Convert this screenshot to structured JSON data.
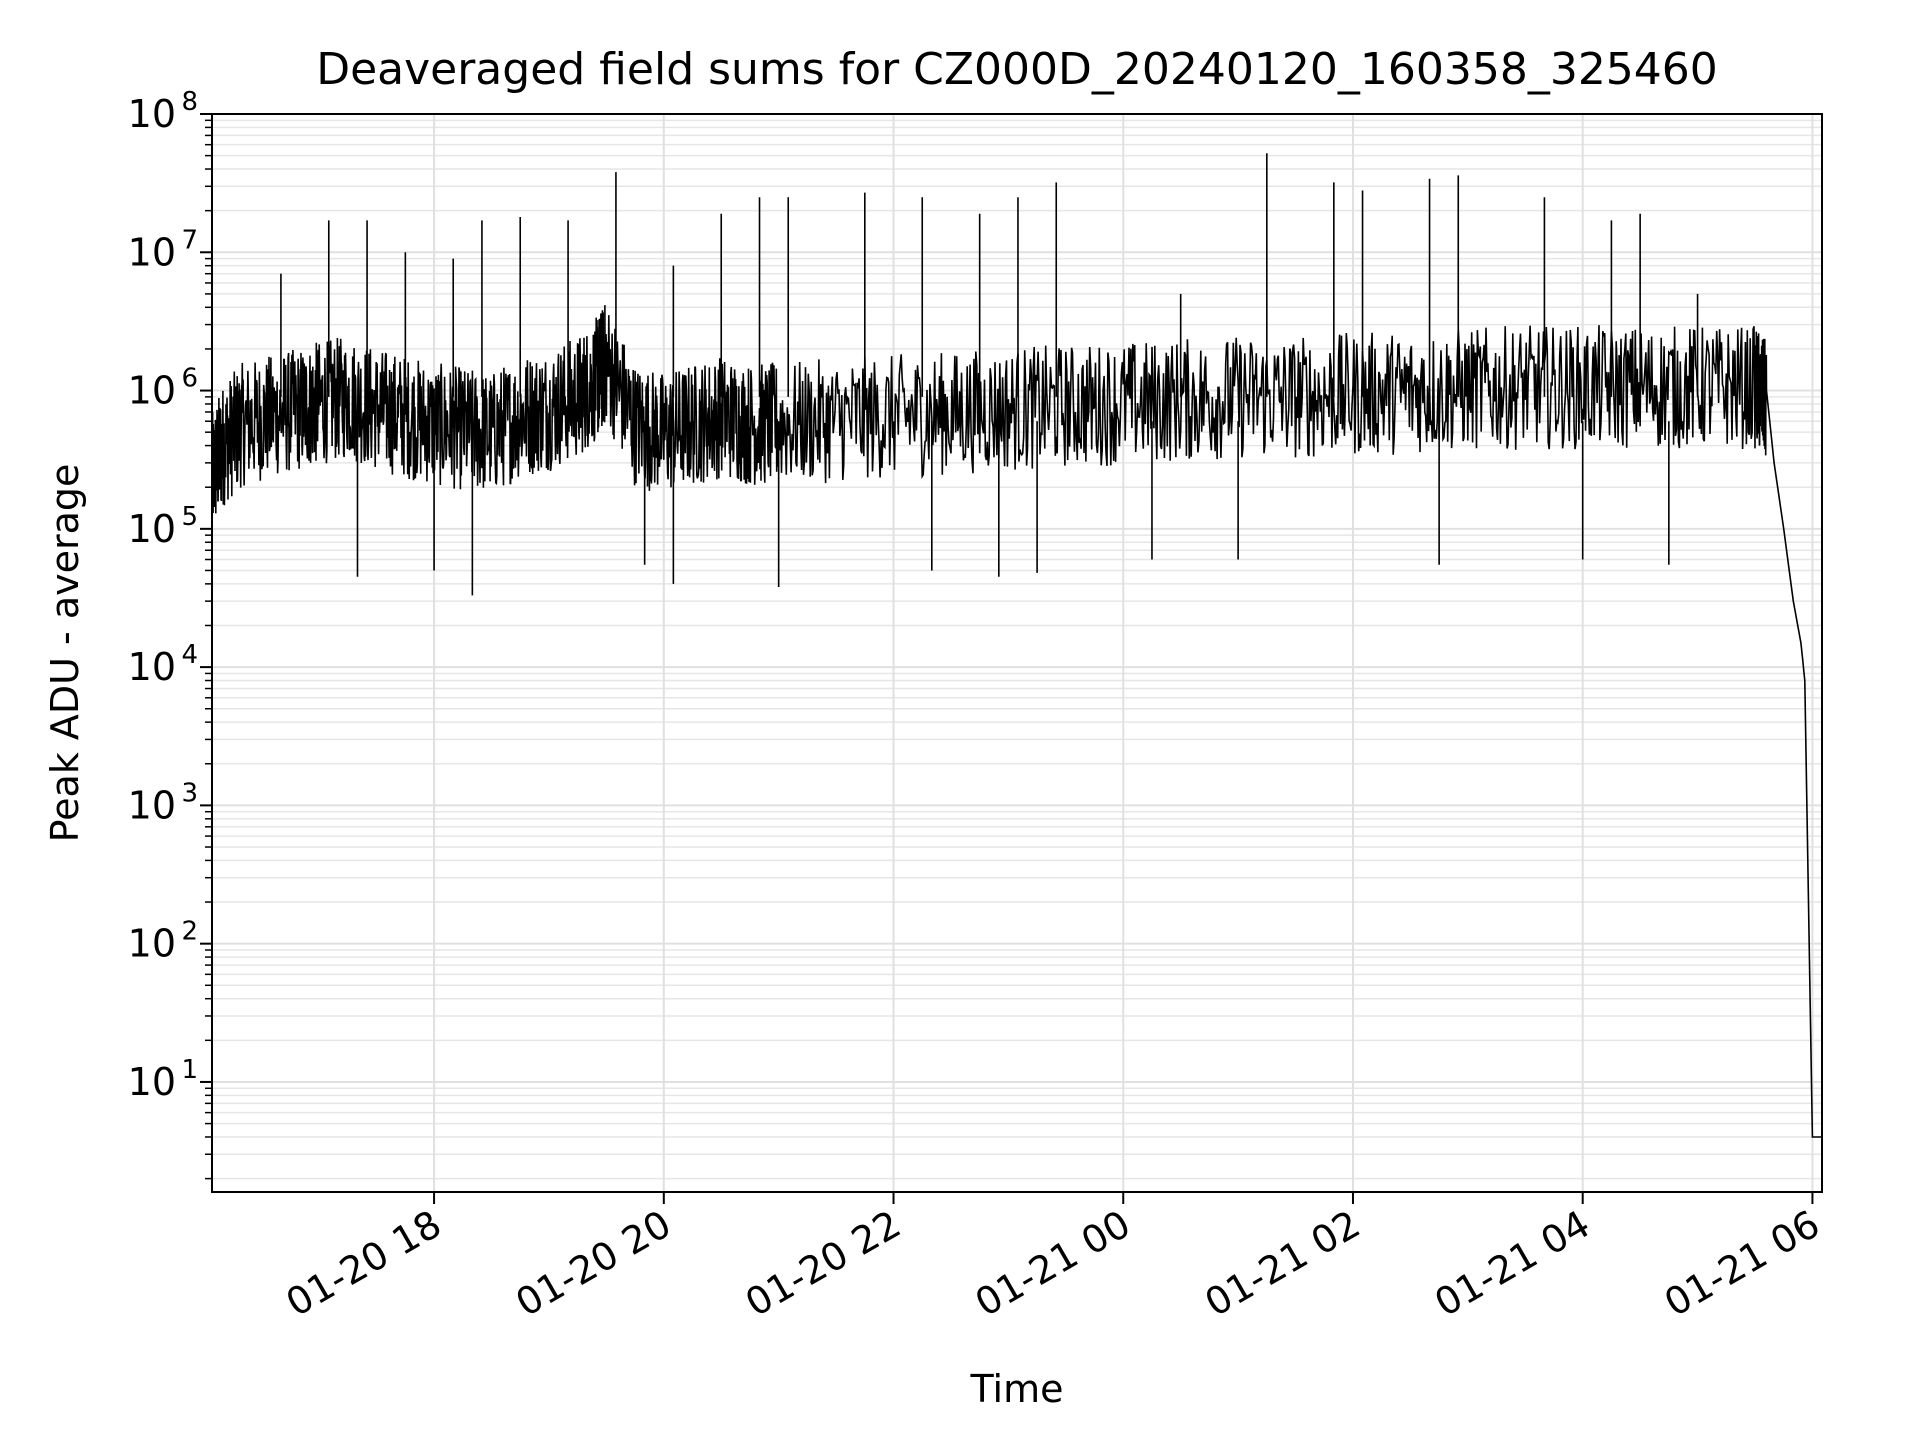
{
  "chart_data": {
    "type": "line",
    "title": "Deaveraged field sums for CZ000D_20240120_160358_325460",
    "xlabel": "Time",
    "ylabel": "Peak ADU - average",
    "yscale": "log",
    "ylim": [
      1.6,
      100000000
    ],
    "xlim": [
      "2024-01-20 16:04",
      "2024-01-21 06:05"
    ],
    "grid": "major and minor",
    "legend": "none",
    "y_ticks": [
      {
        "base": "10",
        "exp": "1",
        "value": 10
      },
      {
        "base": "10",
        "exp": "2",
        "value": 100
      },
      {
        "base": "10",
        "exp": "3",
        "value": 1000
      },
      {
        "base": "10",
        "exp": "4",
        "value": 10000
      },
      {
        "base": "10",
        "exp": "5",
        "value": 100000
      },
      {
        "base": "10",
        "exp": "6",
        "value": 1000000
      },
      {
        "base": "10",
        "exp": "7",
        "value": 10000000
      },
      {
        "base": "10",
        "exp": "8",
        "value": 100000000
      }
    ],
    "x_ticks": [
      {
        "label": "01-20 18",
        "time": "2024-01-20 18:00"
      },
      {
        "label": "01-20 20",
        "time": "2024-01-20 20:00"
      },
      {
        "label": "01-20 22",
        "time": "2024-01-20 22:00"
      },
      {
        "label": "01-21 00",
        "time": "2024-01-21 00:00"
      },
      {
        "label": "01-21 02",
        "time": "2024-01-21 02:00"
      },
      {
        "label": "01-21 04",
        "time": "2024-01-21 04:00"
      },
      {
        "label": "01-21 06",
        "time": "2024-01-21 06:00"
      }
    ],
    "series": [
      {
        "color": "#000000",
        "x": [
          "2024-01-20 16:04",
          "2024-01-20 16:10",
          "2024-01-20 16:20",
          "2024-01-20 16:35",
          "2024-01-20 16:50",
          "2024-01-20 17:00",
          "2024-01-20 17:15",
          "2024-01-20 17:30",
          "2024-01-20 17:45",
          "2024-01-20 18:00",
          "2024-01-20 18:15",
          "2024-01-20 18:30",
          "2024-01-20 18:45",
          "2024-01-20 19:00",
          "2024-01-20 19:15",
          "2024-01-20 19:25",
          "2024-01-20 19:30",
          "2024-01-20 19:45",
          "2024-01-20 20:00",
          "2024-01-20 20:15",
          "2024-01-20 20:30",
          "2024-01-20 20:45",
          "2024-01-20 21:00",
          "2024-01-20 21:30",
          "2024-01-20 22:00",
          "2024-01-20 22:30",
          "2024-01-20 23:00",
          "2024-01-20 23:30",
          "2024-01-21 00:00",
          "2024-01-21 00:30",
          "2024-01-21 01:00",
          "2024-01-21 01:30",
          "2024-01-21 02:00",
          "2024-01-21 02:30",
          "2024-01-21 03:00",
          "2024-01-21 03:30",
          "2024-01-21 04:00",
          "2024-01-21 04:30",
          "2024-01-21 05:00",
          "2024-01-21 05:30",
          "2024-01-21 05:36",
          "2024-01-21 05:40",
          "2024-01-21 05:45",
          "2024-01-21 05:50",
          "2024-01-21 05:54",
          "2024-01-21 05:56",
          "2024-01-21 06:00",
          "2024-01-21 06:05"
        ],
        "y": [
          300000,
          500000,
          700000,
          800000,
          900000,
          1000000,
          1100000,
          900000,
          800000,
          700000,
          650000,
          600000,
          800000,
          900000,
          1100000,
          1500000,
          2000000,
          700000,
          600000,
          700000,
          800000,
          700000,
          700000,
          750000,
          800000,
          850000,
          900000,
          950000,
          1000000,
          1050000,
          1100000,
          1100000,
          1150000,
          1200000,
          1250000,
          1300000,
          1300000,
          1300000,
          1300000,
          1300000,
          1000000,
          300000,
          100000,
          30000,
          15000,
          8000,
          4,
          4
        ]
      }
    ],
    "spikes": [
      {
        "x": "2024-01-20 16:40",
        "y": 7000000
      },
      {
        "x": "2024-01-20 17:05",
        "y": 17000000
      },
      {
        "x": "2024-01-20 17:25",
        "y": 17000000
      },
      {
        "x": "2024-01-20 17:45",
        "y": 10000000
      },
      {
        "x": "2024-01-20 18:10",
        "y": 9000000
      },
      {
        "x": "2024-01-20 18:25",
        "y": 17000000
      },
      {
        "x": "2024-01-20 18:45",
        "y": 18000000
      },
      {
        "x": "2024-01-20 19:10",
        "y": 17000000
      },
      {
        "x": "2024-01-20 19:35",
        "y": 38000000
      },
      {
        "x": "2024-01-20 20:05",
        "y": 8000000
      },
      {
        "x": "2024-01-20 20:30",
        "y": 19000000
      },
      {
        "x": "2024-01-20 20:50",
        "y": 25000000
      },
      {
        "x": "2024-01-20 21:05",
        "y": 25000000
      },
      {
        "x": "2024-01-20 21:45",
        "y": 27000000
      },
      {
        "x": "2024-01-20 22:15",
        "y": 25000000
      },
      {
        "x": "2024-01-20 22:45",
        "y": 19000000
      },
      {
        "x": "2024-01-20 23:05",
        "y": 25000000
      },
      {
        "x": "2024-01-20 23:25",
        "y": 32000000
      },
      {
        "x": "2024-01-21 00:30",
        "y": 5000000
      },
      {
        "x": "2024-01-21 01:15",
        "y": 52000000
      },
      {
        "x": "2024-01-21 01:50",
        "y": 32000000
      },
      {
        "x": "2024-01-21 02:05",
        "y": 28000000
      },
      {
        "x": "2024-01-21 02:40",
        "y": 34000000
      },
      {
        "x": "2024-01-21 02:55",
        "y": 36000000
      },
      {
        "x": "2024-01-21 03:40",
        "y": 25000000
      },
      {
        "x": "2024-01-21 04:15",
        "y": 17000000
      },
      {
        "x": "2024-01-21 04:30",
        "y": 19000000
      },
      {
        "x": "2024-01-21 05:00",
        "y": 5000000
      }
    ],
    "dips": [
      {
        "x": "2024-01-20 17:20",
        "y": 45000
      },
      {
        "x": "2024-01-20 18:00",
        "y": 50000
      },
      {
        "x": "2024-01-20 18:20",
        "y": 33000
      },
      {
        "x": "2024-01-20 19:50",
        "y": 55000
      },
      {
        "x": "2024-01-20 20:05",
        "y": 40000
      },
      {
        "x": "2024-01-20 21:00",
        "y": 38000
      },
      {
        "x": "2024-01-20 22:20",
        "y": 50000
      },
      {
        "x": "2024-01-20 22:55",
        "y": 45000
      },
      {
        "x": "2024-01-20 23:15",
        "y": 48000
      },
      {
        "x": "2024-01-21 00:15",
        "y": 60000
      },
      {
        "x": "2024-01-21 01:00",
        "y": 60000
      },
      {
        "x": "2024-01-21 02:45",
        "y": 55000
      },
      {
        "x": "2024-01-21 04:00",
        "y": 60000
      },
      {
        "x": "2024-01-21 04:45",
        "y": 55000
      }
    ]
  }
}
